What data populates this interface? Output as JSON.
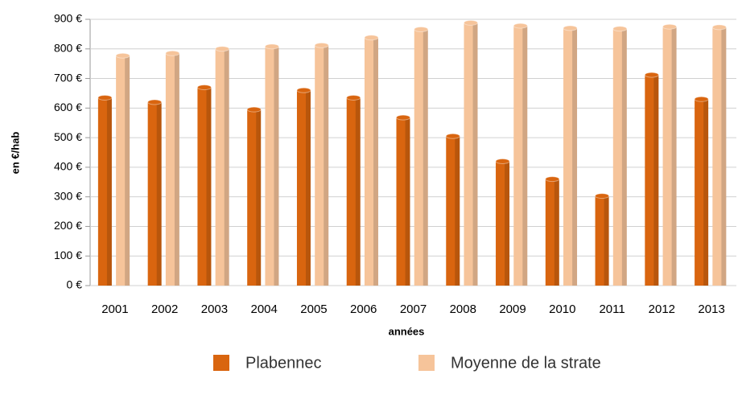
{
  "chart_data": {
    "type": "bar",
    "categories": [
      "2001",
      "2002",
      "2003",
      "2004",
      "2005",
      "2006",
      "2007",
      "2008",
      "2009",
      "2010",
      "2011",
      "2012",
      "2013"
    ],
    "series": [
      {
        "name": "Plabennec",
        "color": "#d9650f",
        "values": [
          635,
          620,
          670,
          595,
          660,
          635,
          568,
          505,
          420,
          360,
          303,
          712,
          630
        ]
      },
      {
        "name": "Moyenne de la strate",
        "color": "#f6c49a",
        "values": [
          777,
          785,
          800,
          808,
          812,
          838,
          866,
          888,
          878,
          870,
          868,
          875,
          873
        ]
      }
    ],
    "y_label": "en €/hab",
    "x_label": "années",
    "ylim": [
      0,
      900
    ],
    "yticks": [
      {
        "value": 0,
        "label": "0 €"
      },
      {
        "value": 100,
        "label": "100 €"
      },
      {
        "value": 200,
        "label": "200 €"
      },
      {
        "value": 300,
        "label": "300 €"
      },
      {
        "value": 400,
        "label": "400 €"
      },
      {
        "value": 500,
        "label": "500 €"
      },
      {
        "value": 600,
        "label": "600 €"
      },
      {
        "value": 700,
        "label": "700 €"
      },
      {
        "value": 800,
        "label": "800 €"
      },
      {
        "value": 900,
        "label": "900 €"
      }
    ],
    "grid": true,
    "legend": "bottom"
  }
}
